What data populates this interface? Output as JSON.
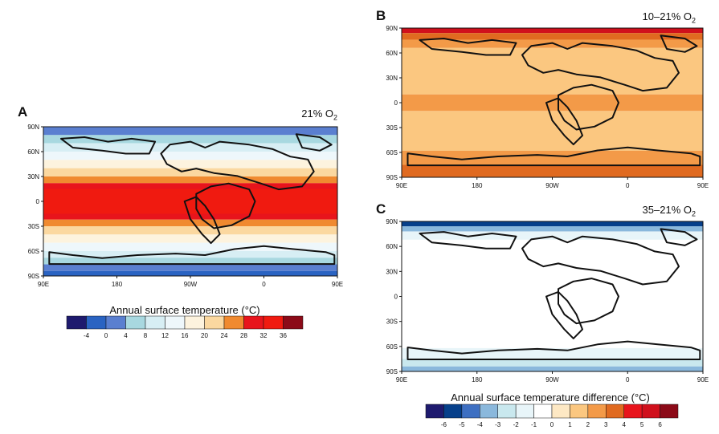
{
  "chart_data": [
    {
      "type": "heatmap",
      "panel": "A",
      "title": "21% O",
      "title_sub": "2",
      "x_ticks": [
        "90E",
        "180",
        "90W",
        "0",
        "90E"
      ],
      "y_ticks": [
        "90N",
        "60N",
        "30N",
        "0",
        "30S",
        "60S",
        "90S"
      ],
      "colorbar_label": "Annual surface temperature (°C)",
      "colorbar_ticks": [
        "-4",
        "0",
        "4",
        "8",
        "12",
        "16",
        "20",
        "24",
        "28",
        "32",
        "36"
      ],
      "colors": [
        "#1e1a6e",
        "#2a63c2",
        "#5a7fd0",
        "#a8d8e0",
        "#d7eef4",
        "#eef7fb",
        "#fdf3de",
        "#fbd8a0",
        "#f08a30",
        "#e8141c",
        "#f01a10",
        "#8c0a18"
      ],
      "zonal_bands": [
        {
          "lat_from": 90,
          "lat_to": 80,
          "value": 0
        },
        {
          "lat_from": 80,
          "lat_to": 70,
          "value": 4
        },
        {
          "lat_from": 70,
          "lat_to": 60,
          "value": 8
        },
        {
          "lat_from": 60,
          "lat_to": 50,
          "value": 12
        },
        {
          "lat_from": 50,
          "lat_to": 40,
          "value": 16
        },
        {
          "lat_from": 40,
          "lat_to": 30,
          "value": 20
        },
        {
          "lat_from": 30,
          "lat_to": 22,
          "value": 24
        },
        {
          "lat_from": 22,
          "lat_to": 15,
          "value": 28
        },
        {
          "lat_from": 15,
          "lat_to": -15,
          "value": 32
        },
        {
          "lat_from": -15,
          "lat_to": -22,
          "value": 28
        },
        {
          "lat_from": -22,
          "lat_to": -30,
          "value": 24
        },
        {
          "lat_from": -30,
          "lat_to": -40,
          "value": 20
        },
        {
          "lat_from": -40,
          "lat_to": -50,
          "value": 16
        },
        {
          "lat_from": -50,
          "lat_to": -60,
          "value": 12
        },
        {
          "lat_from": -60,
          "lat_to": -68,
          "value": 8
        },
        {
          "lat_from": -68,
          "lat_to": -76,
          "value": 4
        },
        {
          "lat_from": -76,
          "lat_to": -84,
          "value": 0
        },
        {
          "lat_from": -84,
          "lat_to": -90,
          "value": -4
        }
      ]
    },
    {
      "type": "heatmap",
      "panel": "B",
      "title": "10–21% O",
      "title_sub": "2",
      "x_ticks": [
        "90E",
        "180",
        "90W",
        "0",
        "90E"
      ],
      "y_ticks": [
        "90N",
        "60N",
        "30N",
        "0",
        "30S",
        "60S",
        "90S"
      ],
      "colors": [
        "#1e1a6e",
        "#063f8a",
        "#3d6fc2",
        "#8ab8dc",
        "#c9e8ee",
        "#e8f5f9",
        "#ffffff",
        "#fde8c4",
        "#fbc780",
        "#f39a48",
        "#e06a20",
        "#e8141c",
        "#d0101c",
        "#8c0a18"
      ],
      "zonal_bands": [
        {
          "lat_from": 90,
          "lat_to": 84,
          "value": 5
        },
        {
          "lat_from": 84,
          "lat_to": 76,
          "value": 3
        },
        {
          "lat_from": 76,
          "lat_to": 66,
          "value": 2
        },
        {
          "lat_from": 66,
          "lat_to": 10,
          "value": 1
        },
        {
          "lat_from": 10,
          "lat_to": -10,
          "value": 2
        },
        {
          "lat_from": -10,
          "lat_to": -58,
          "value": 1
        },
        {
          "lat_from": -58,
          "lat_to": -75,
          "value": 2
        },
        {
          "lat_from": -75,
          "lat_to": -90,
          "value": 3
        }
      ]
    },
    {
      "type": "heatmap",
      "panel": "C",
      "title": "35–21% O",
      "title_sub": "2",
      "x_ticks": [
        "90E",
        "180",
        "90W",
        "0",
        "90E"
      ],
      "y_ticks": [
        "90N",
        "60N",
        "30N",
        "0",
        "30S",
        "60S",
        "90S"
      ],
      "colorbar_label": "Annual surface temperature difference (°C)",
      "colorbar_ticks": [
        "-6",
        "-5",
        "-4",
        "-3",
        "-2",
        "-1",
        "0",
        "1",
        "2",
        "3",
        "4",
        "5",
        "6"
      ],
      "colors": [
        "#1e1a6e",
        "#063f8a",
        "#3d6fc2",
        "#8ab8dc",
        "#c9e8ee",
        "#e8f5f9",
        "#ffffff",
        "#fde8c4",
        "#fbc780",
        "#f39a48",
        "#e06a20",
        "#e8141c",
        "#d0101c",
        "#8c0a18"
      ],
      "zonal_bands": [
        {
          "lat_from": 90,
          "lat_to": 84,
          "value": -6
        },
        {
          "lat_from": 84,
          "lat_to": 78,
          "value": -4
        },
        {
          "lat_from": 78,
          "lat_to": 68,
          "value": -2
        },
        {
          "lat_from": 68,
          "lat_to": -62,
          "value": -1
        },
        {
          "lat_from": -62,
          "lat_to": -75,
          "value": -2
        },
        {
          "lat_from": -75,
          "lat_to": -84,
          "value": -3
        },
        {
          "lat_from": -84,
          "lat_to": -90,
          "value": -4
        }
      ]
    }
  ]
}
